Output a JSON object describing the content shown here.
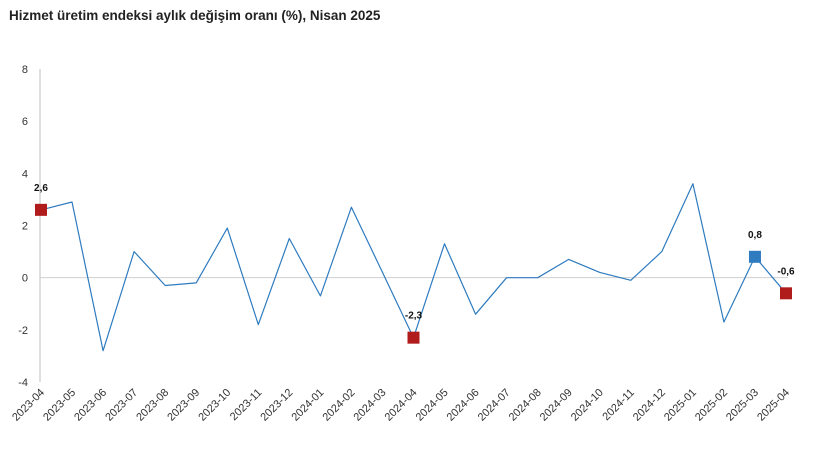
{
  "chart_data": {
    "type": "line",
    "title": "Hizmet üretim endeksi aylık değişim oranı (%), Nisan 2025",
    "xlabel": "",
    "ylabel": "",
    "ylim": [
      -4,
      8
    ],
    "yticks": [
      "-4",
      "-2",
      "0",
      "2",
      "4",
      "6",
      "8"
    ],
    "grid": false,
    "categories": [
      "2023-04",
      "2023-05",
      "2023-06",
      "2023-07",
      "2023-08",
      "2023-09",
      "2023-10",
      "2023-11",
      "2023-12",
      "2024-01",
      "2024-02",
      "2024-03",
      "2024-04",
      "2024-05",
      "2024-06",
      "2024-07",
      "2024-08",
      "2024-09",
      "2024-10",
      "2024-11",
      "2024-12",
      "2025-01",
      "2025-02",
      "2025-03",
      "2025-04"
    ],
    "series": [
      {
        "color": "#2e7bbf",
        "values": [
          2.6,
          2.9,
          -2.8,
          1.0,
          -0.3,
          -0.2,
          1.9,
          -1.8,
          1.5,
          -0.7,
          2.7,
          0.2,
          -2.3,
          1.3,
          -1.4,
          0.0,
          0.0,
          0.7,
          0.2,
          -0.1,
          1.0,
          3.6,
          -1.7,
          0.8,
          -0.6
        ]
      }
    ],
    "highlights": [
      {
        "category": "2023-04",
        "value": 2.6,
        "label": "2,6",
        "color": "#b01c1c"
      },
      {
        "category": "2024-04",
        "value": -2.3,
        "label": "-2,3",
        "color": "#b01c1c"
      },
      {
        "category": "2025-03",
        "value": 0.8,
        "label": "0,8",
        "color": "#2e7bbf"
      },
      {
        "category": "2025-04",
        "value": -0.6,
        "label": "-0,6",
        "color": "#b01c1c"
      }
    ]
  }
}
